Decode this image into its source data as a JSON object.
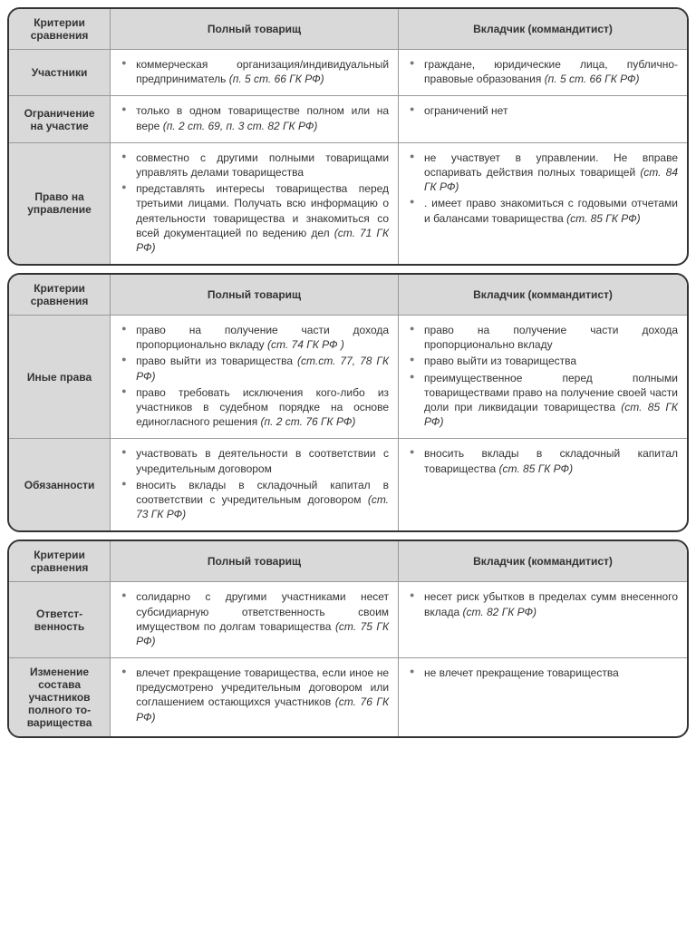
{
  "headers": {
    "criteria": "Критерии сравнения",
    "full": "Полный товарищ",
    "investor": "Вкладчик (коммандитист)"
  },
  "t1": {
    "r1": {
      "crit": "Участники",
      "full": [
        {
          "t": "коммерческая организация/индивидуальный предприниматель ",
          "ref": "(п. 5 ст. 66 ГК РФ)"
        }
      ],
      "inv": [
        {
          "t": "граждане, юридические лица, публично-правовые образования ",
          "ref": "(п. 5 ст. 66 ГК РФ)"
        }
      ]
    },
    "r2": {
      "crit": "Ограничение на участие",
      "full": [
        {
          "t": "только в одном товариществе полном или на вере ",
          "ref": "(п. 2 ст. 69, п. 3 ст. 82 ГК РФ)"
        }
      ],
      "inv": [
        {
          "t": "ограничений нет",
          "ref": ""
        }
      ]
    },
    "r3": {
      "crit": "Право на управление",
      "full": [
        {
          "t": "совместно с другими полными товарищами управлять делами товарищества",
          "ref": ""
        },
        {
          "t": "представлять интересы товарищества перед третьими лицами. Получать всю информацию о деятельности товарищества и знакомиться со всей документацией по ведению дел ",
          "ref": "(ст. 71 ГК РФ)"
        }
      ],
      "inv": [
        {
          "t": "не участвует в управлении. Не вправе оспаривать действия полных товарищей ",
          "ref": "(ст. 84 ГК РФ)"
        },
        {
          "t": ". имеет право знакомиться с годовыми отчетами и балансами товарищества ",
          "ref": "(ст. 85 ГК РФ)"
        }
      ]
    }
  },
  "t2": {
    "r1": {
      "crit": "Иные права",
      "full": [
        {
          "t": "право на получение части дохода пропорционально вкладу ",
          "ref": "(ст. 74 ГК РФ )"
        },
        {
          "t": "право выйти из товарищества ",
          "ref": "(ст.ст. 77, 78 ГК РФ)"
        },
        {
          "t": "право требовать исключения кого-либо из участников в судебном порядке на основе единогласного решения ",
          "ref": "(п. 2 ст. 76 ГК РФ)"
        }
      ],
      "inv": [
        {
          "t": "право на получение части дохода пропорционально вкладу",
          "ref": ""
        },
        {
          "t": "право выйти из товарищества",
          "ref": ""
        },
        {
          "t": "преимущественное перед полными товариществами право на получение своей части доли при ликвидации товарищества ",
          "ref": "(ст. 85 ГК РФ)"
        }
      ]
    },
    "r2": {
      "crit": "Обязанности",
      "full": [
        {
          "t": "участвовать в деятельности в соответствии с учредительным договором",
          "ref": ""
        },
        {
          "t": "вносить вклады в складочный капитал в соответствии с учредительным договором ",
          "ref": "(ст. 73 ГК РФ)"
        }
      ],
      "inv": [
        {
          "t": "вносить вклады в складочный капитал товарищества ",
          "ref": "(ст. 85 ГК РФ)"
        }
      ]
    }
  },
  "t3": {
    "r1": {
      "crit": "Ответст­венность",
      "full": [
        {
          "t": "солидарно с другими участниками несет субсидиарную ответственность своим имуществом по долгам товарищества ",
          "ref": "(ст. 75 ГК РФ)"
        }
      ],
      "inv": [
        {
          "t": "несет риск убытков в пределах сумм внесенного вклада ",
          "ref": "(ст. 82 ГК РФ)"
        }
      ]
    },
    "r2": {
      "crit": "Изменение состава участников полного то­варищества",
      "full": [
        {
          "t": "влечет прекращение товарищества, если иное не предусмотрено учредительным договором или соглашением остающихся участников ",
          "ref": "(ст. 76 ГК РФ)"
        }
      ],
      "inv": [
        {
          "t": "не влечет прекращение това­рищества",
          "ref": ""
        }
      ]
    }
  }
}
